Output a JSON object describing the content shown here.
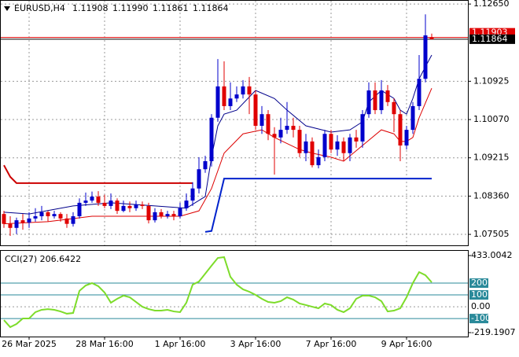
{
  "header": {
    "symbol": "EURUSD,H4",
    "ohlc": [
      "1.11908",
      "1.11990",
      "1.11861",
      "1.11864"
    ]
  },
  "chart_data": [
    {
      "type": "candlestick",
      "categories": [
        null,
        null,
        null,
        null,
        "26 Mar 2025",
        null,
        null,
        null,
        null,
        null,
        null,
        null,
        null,
        null,
        null,
        null,
        "28 Mar 16:00",
        null,
        null,
        null,
        null,
        null,
        null,
        null,
        null,
        null,
        null,
        null,
        "1 Apr 16:00",
        null,
        null,
        null,
        null,
        null,
        null,
        null,
        null,
        null,
        null,
        null,
        "3 Apr 16:00",
        null,
        null,
        null,
        null,
        null,
        null,
        null,
        null,
        null,
        null,
        null,
        "7 Apr 16:00",
        null,
        null,
        null,
        null,
        null,
        null,
        null,
        null,
        null,
        null,
        null,
        "9 Apr 16:00",
        null,
        null,
        null,
        null
      ],
      "open": [
        1.0796,
        1.0774,
        1.0765,
        1.0782,
        1.0777,
        1.0786,
        1.0791,
        1.08,
        1.0791,
        1.0796,
        1.0786,
        1.0774,
        1.0791,
        1.0821,
        1.0826,
        1.0835,
        1.0821,
        1.0814,
        1.0826,
        1.0803,
        1.0814,
        1.0809,
        1.0817,
        1.0814,
        1.0782,
        1.08,
        1.0791,
        1.0796,
        1.0791,
        1.0809,
        1.0826,
        1.0853,
        1.0896,
        1.0914,
        1.1011,
        1.1081,
        1.1037,
        1.1054,
        1.1063,
        1.1081,
        1.1063,
        1.0993,
        1.1019,
        1.0975,
        1.0967,
        1.0984,
        1.0993,
        1.0984,
        1.0932,
        1.0958,
        1.0905,
        1.0923,
        1.0975,
        1.094,
        1.0958,
        1.0932,
        1.0967,
        1.0958,
        1.1019,
        1.1072,
        1.1028,
        1.1072,
        1.1046,
        1.1019,
        1.0949,
        1.0984,
        1.1037,
        1.1098,
        1.11908
      ],
      "high": [
        1.0803,
        1.0791,
        1.0788,
        1.0796,
        1.08,
        1.0809,
        1.0814,
        1.0803,
        1.0803,
        1.08,
        1.0796,
        1.08,
        1.0831,
        1.0844,
        1.0846,
        1.0847,
        1.0839,
        1.0842,
        1.0831,
        1.0826,
        1.0824,
        1.0826,
        1.0824,
        1.0821,
        1.0809,
        1.0807,
        1.0803,
        1.0803,
        1.0821,
        1.0842,
        1.0867,
        1.0923,
        1.0926,
        1.1019,
        1.1142,
        1.1137,
        1.109,
        1.1081,
        1.1095,
        1.1102,
        1.1072,
        1.1037,
        1.1028,
        1.099,
        1.1011,
        1.1046,
        1.1011,
        1.0993,
        1.0975,
        1.0967,
        1.094,
        1.0984,
        1.0984,
        1.0972,
        1.0967,
        1.0975,
        1.0984,
        1.1028,
        1.109,
        1.109,
        1.1095,
        1.1084,
        1.1054,
        1.1028,
        1.0993,
        1.1046,
        1.1151,
        1.1242,
        1.1199
      ],
      "low": [
        1.0765,
        1.0747,
        1.0751,
        1.0761,
        1.0765,
        1.0779,
        1.0782,
        1.0779,
        1.0786,
        1.0779,
        1.0765,
        1.0768,
        1.0786,
        1.0814,
        1.0821,
        1.0814,
        1.0809,
        1.0807,
        1.0796,
        1.08,
        1.08,
        1.0803,
        1.0807,
        1.0775,
        1.0777,
        1.0786,
        1.0786,
        1.0782,
        1.0786,
        1.0803,
        1.0814,
        1.0842,
        1.0888,
        1.0902,
        1.1002,
        1.1028,
        1.1028,
        1.1046,
        1.1054,
        1.1019,
        1.0984,
        1.0975,
        1.0961,
        1.0884,
        1.0954,
        1.0975,
        1.0967,
        1.0923,
        1.0914,
        1.09,
        1.0898,
        1.0914,
        1.0932,
        1.0926,
        1.0914,
        1.0914,
        1.0944,
        1.0944,
        1.1011,
        1.1019,
        1.1019,
        1.1037,
        1.0979,
        1.0914,
        1.094,
        1.0975,
        1.1028,
        1.109,
        1.11861
      ],
      "close": [
        1.0774,
        1.0765,
        1.0782,
        1.0777,
        1.0786,
        1.0791,
        1.08,
        1.0791,
        1.0796,
        1.0786,
        1.0774,
        1.0791,
        1.0821,
        1.0826,
        1.0835,
        1.0821,
        1.0814,
        1.0826,
        1.0803,
        1.0814,
        1.0809,
        1.0817,
        1.0814,
        1.0782,
        1.08,
        1.0791,
        1.0796,
        1.0791,
        1.0809,
        1.0826,
        1.0853,
        1.0896,
        1.0914,
        1.1011,
        1.1081,
        1.1037,
        1.1054,
        1.1063,
        1.1081,
        1.1063,
        1.0993,
        1.1019,
        1.0975,
        1.0967,
        1.0984,
        1.0993,
        1.0984,
        1.0932,
        1.0958,
        1.0905,
        1.0923,
        1.0975,
        1.094,
        1.0958,
        1.0932,
        1.0967,
        1.0958,
        1.1019,
        1.1072,
        1.1028,
        1.1072,
        1.1046,
        1.1019,
        1.0949,
        1.0984,
        1.1037,
        1.1098,
        1.1195,
        1.11864
      ],
      "up_color": "#0000cc",
      "down_color": "#e00000",
      "ylim": [
        1.0726,
        1.1274
      ],
      "yticks": [
        {
          "value": 1.1265,
          "label": "1.12650"
        },
        {
          "value": 1.10925,
          "label": "1.10925"
        },
        {
          "value": 1.1007,
          "label": "1.10070"
        },
        {
          "value": 1.09215,
          "label": "1.09215"
        },
        {
          "value": 1.0836,
          "label": "1.08360"
        },
        {
          "value": 1.07505,
          "label": "1.07505"
        }
      ],
      "grid": true,
      "overlays": [
        {
          "color": "#00008b",
          "x": [
            0,
            4,
            11,
            17,
            24,
            29,
            32,
            33,
            34,
            35,
            37,
            40,
            43,
            45,
            48,
            52,
            55,
            57,
            58,
            60,
            62,
            63,
            64,
            65,
            66,
            67,
            68
          ],
          "values": [
            1.08,
            1.0796,
            1.0814,
            1.0821,
            1.0814,
            1.0809,
            1.0835,
            1.0923,
            1.0993,
            1.1019,
            1.1028,
            1.1072,
            1.1054,
            1.1028,
            1.0993,
            1.0979,
            1.0984,
            1.1002,
            1.1046,
            1.1072,
            1.1054,
            1.1028,
            1.1019,
            1.1054,
            1.1098,
            1.1125,
            1.1151
          ]
        },
        {
          "color": "#dd0000",
          "x": [
            0,
            7,
            14,
            22,
            28,
            31,
            33,
            35,
            38,
            41,
            43,
            47,
            49,
            52,
            54,
            57,
            60,
            62,
            63,
            64,
            65,
            66,
            68
          ],
          "values": [
            1.0774,
            1.0779,
            1.0791,
            1.0791,
            1.0791,
            1.0803,
            1.0853,
            1.0932,
            1.0975,
            1.0984,
            1.0967,
            1.094,
            1.0932,
            1.0923,
            1.0914,
            1.0949,
            1.0984,
            1.0975,
            1.0958,
            1.0958,
            1.0967,
            1.1011,
            1.1077
          ]
        },
        {
          "color": "#cc0000",
          "x": [
            0,
            1,
            2,
            30
          ],
          "values": [
            1.0905,
            1.0879,
            1.0865,
            1.0865
          ]
        },
        {
          "color": "#0022cc",
          "x": [
            32,
            33,
            35,
            68
          ],
          "values": [
            1.0756,
            1.0758,
            1.0875,
            1.0875
          ]
        }
      ],
      "price_lines": [
        {
          "value": 1.11903,
          "color": "#e00000"
        },
        {
          "value": 1.11864,
          "color": "#000000"
        }
      ]
    },
    {
      "type": "line",
      "title": "CCI(27) 206.6422",
      "color": "#7ddc2a",
      "values": [
        -113,
        -173,
        -146,
        -99,
        -99,
        -46,
        -26,
        -20,
        -26,
        -40,
        -59,
        -53,
        134,
        180,
        200,
        174,
        120,
        34,
        67,
        94,
        80,
        40,
        0,
        -20,
        -33,
        -33,
        -26,
        -40,
        -46,
        34,
        187,
        213,
        280,
        347,
        413,
        420,
        253,
        187,
        147,
        127,
        100,
        67,
        40,
        34,
        47,
        80,
        60,
        27,
        14,
        0,
        -13,
        27,
        14,
        -26,
        -46,
        -13,
        67,
        94,
        94,
        80,
        47,
        -40,
        -33,
        -13,
        80,
        200,
        293,
        267,
        206.6422
      ],
      "ylim": [
        -219.1907,
        433.0042
      ],
      "yticks": [
        433.0042,
        200,
        100,
        {
          "value": 0,
          "label": "0.00"
        },
        -100,
        -219.1907
      ],
      "level_color": "#2a8a9a"
    }
  ]
}
